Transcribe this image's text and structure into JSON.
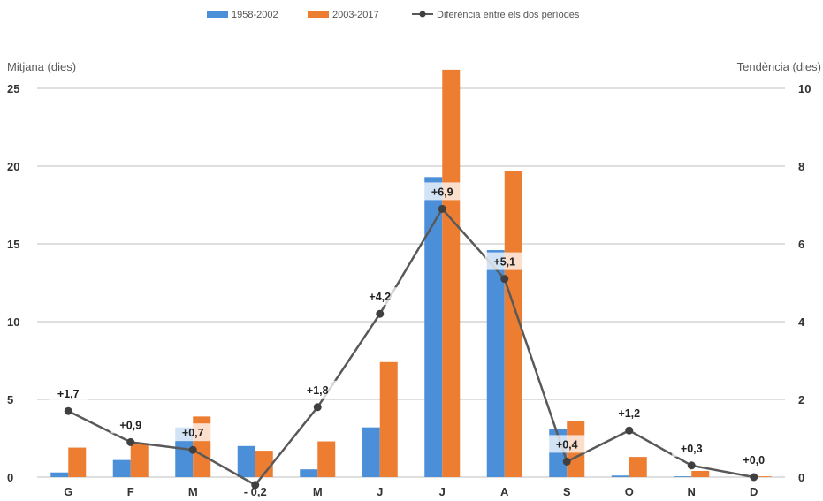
{
  "chart_data": {
    "type": "bar",
    "categories": [
      "G",
      "F",
      "M",
      "- 0,2",
      "M",
      "J",
      "J",
      "A",
      "S",
      "O",
      "N",
      "D"
    ],
    "series": [
      {
        "name": "1958-2002",
        "axis": "left",
        "color": "#4a8fd8",
        "values": [
          0.3,
          1.1,
          3.2,
          2.0,
          0.5,
          3.2,
          19.3,
          14.6,
          3.1,
          0.1,
          0.05,
          0.0
        ]
      },
      {
        "name": "2003-2017",
        "axis": "left",
        "color": "#ed7d31",
        "values": [
          1.9,
          2.1,
          3.9,
          1.7,
          2.3,
          7.4,
          26.2,
          19.7,
          3.6,
          1.3,
          0.4,
          0.05
        ]
      },
      {
        "name": "Diferència entre els dos períodes",
        "type": "line",
        "axis": "right",
        "color": "#595959",
        "values": [
          1.7,
          0.9,
          0.7,
          -0.2,
          1.8,
          4.2,
          6.9,
          5.1,
          0.4,
          1.2,
          0.3,
          0.0
        ]
      }
    ],
    "point_labels": [
      "+1,7",
      "+0,9",
      "+0,7",
      "",
      "+1,8",
      "+4,2",
      "+6,9",
      "+5,1",
      "+0,4",
      "+1,2",
      "+0,3",
      "+0,0"
    ],
    "ylabel": "Mitjana (dies)",
    "y2label": "Tendència (dies)",
    "ylim": [
      0,
      25
    ],
    "yticks": [
      "0",
      "5",
      "10",
      "15",
      "20",
      "25"
    ],
    "y2lim": [
      0,
      10
    ],
    "y2ticks": [
      "0",
      "2",
      "4",
      "6",
      "8",
      "10"
    ],
    "grid": true,
    "legend_position": "top"
  }
}
